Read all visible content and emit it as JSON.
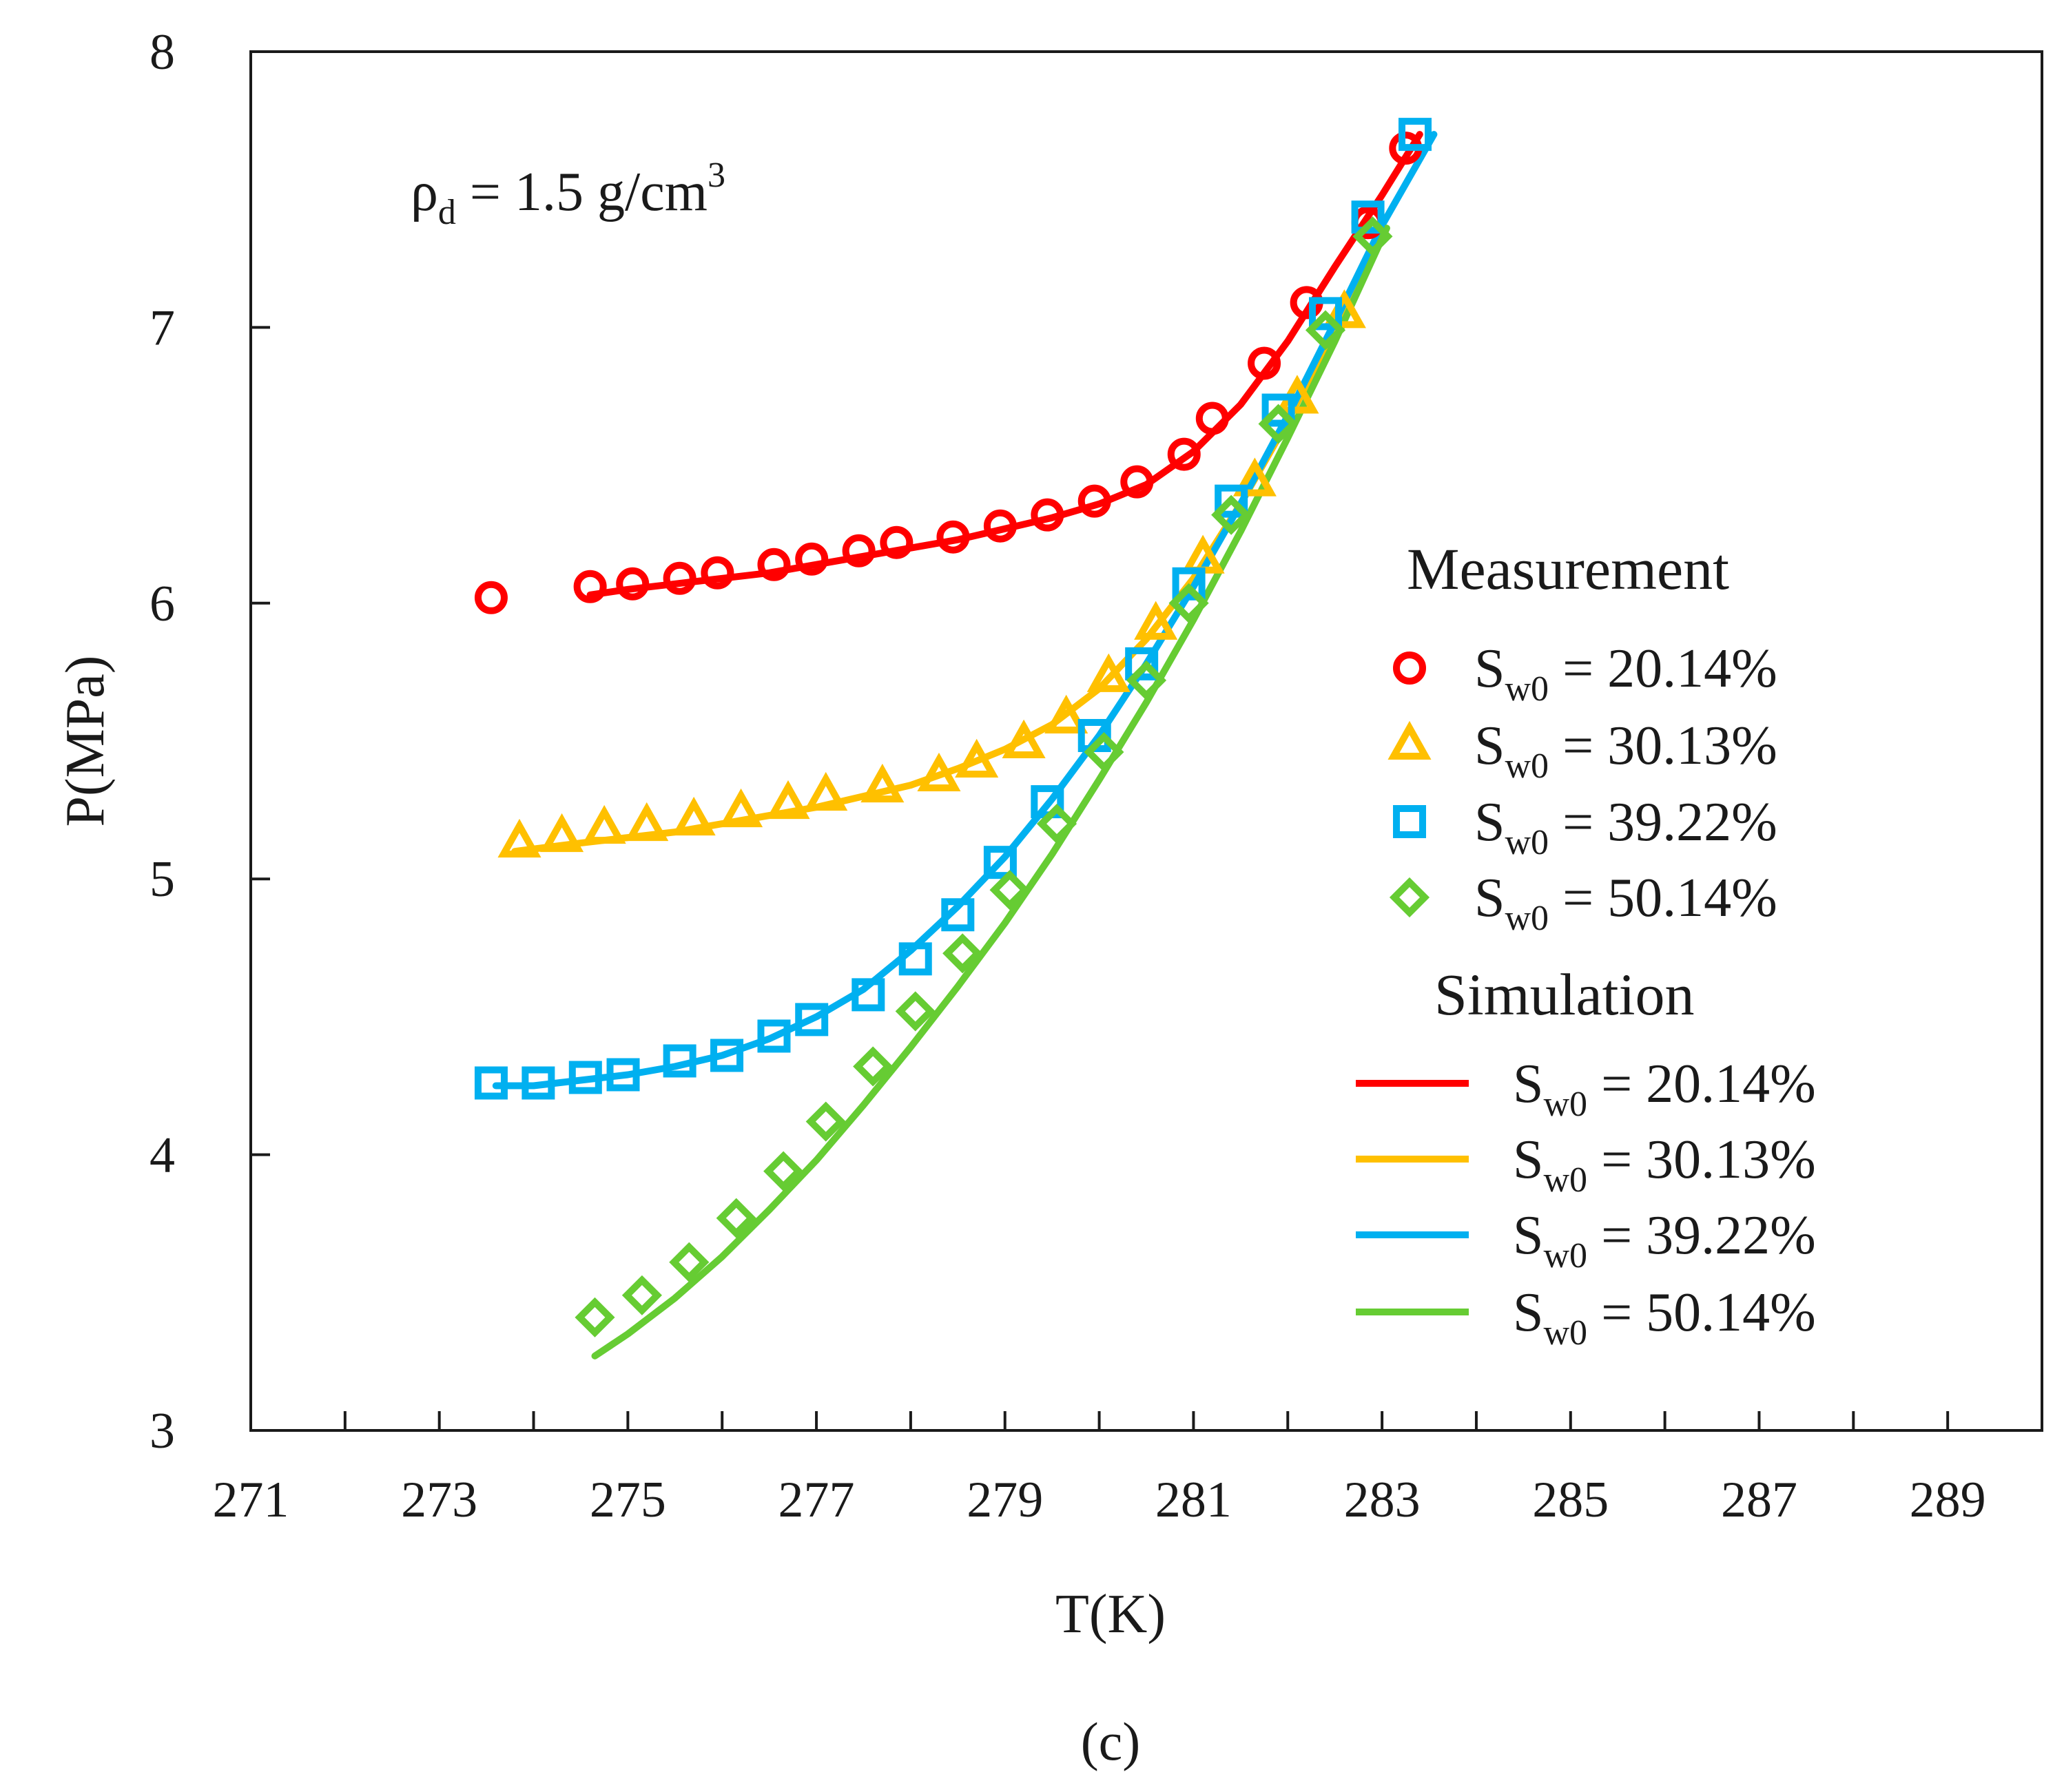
{
  "chart_data": {
    "type": "scatter",
    "xlabel": "T(K)",
    "ylabel": "P(MPa)",
    "xlim": [
      271,
      290
    ],
    "ylim": [
      3,
      8
    ],
    "x_ticks": [
      "271",
      "273",
      "275",
      "277",
      "279",
      "281",
      "283",
      "285",
      "287",
      "289"
    ],
    "y_ticks": [
      "3",
      "4",
      "5",
      "6",
      "7",
      "8"
    ],
    "grid": false,
    "legend_position": "right",
    "annotation": {
      "prefix": "ρ",
      "prefix_sub": "d",
      "body": " = 1.5 g/cm",
      "sup": "3"
    },
    "panel_label": "(c)",
    "legend": {
      "measurement_title": "Measurement",
      "simulation_title": "Simulation",
      "entries": [
        {
          "main": "S",
          "sub": "w0",
          "rest": " = 20.14%"
        },
        {
          "main": "S",
          "sub": "w0",
          "rest": " = 30.13%"
        },
        {
          "main": "S",
          "sub": "w0",
          "rest": " = 39.22%"
        },
        {
          "main": "S",
          "sub": "w0",
          "rest": " = 50.14%"
        }
      ]
    },
    "measurement": [
      {
        "color": "#ff0000",
        "marker": "circle",
        "points": [
          [
            273.55,
            6.02
          ],
          [
            274.6,
            6.06
          ],
          [
            275.05,
            6.07
          ],
          [
            275.55,
            6.09
          ],
          [
            275.95,
            6.11
          ],
          [
            276.55,
            6.14
          ],
          [
            276.95,
            6.16
          ],
          [
            277.45,
            6.19
          ],
          [
            277.85,
            6.22
          ],
          [
            278.45,
            6.24
          ],
          [
            278.95,
            6.28
          ],
          [
            279.45,
            6.32
          ],
          [
            279.95,
            6.37
          ],
          [
            280.4,
            6.44
          ],
          [
            280.9,
            6.54
          ],
          [
            281.2,
            6.67
          ],
          [
            281.75,
            6.87
          ],
          [
            282.2,
            7.09
          ],
          [
            282.85,
            7.38
          ],
          [
            283.25,
            7.65
          ]
        ]
      },
      {
        "color": "#ffc000",
        "marker": "triangle",
        "points": [
          [
            273.85,
            5.13
          ],
          [
            274.3,
            5.15
          ],
          [
            274.75,
            5.18
          ],
          [
            275.2,
            5.19
          ],
          [
            275.7,
            5.21
          ],
          [
            276.2,
            5.24
          ],
          [
            276.7,
            5.27
          ],
          [
            277.1,
            5.3
          ],
          [
            277.7,
            5.33
          ],
          [
            278.3,
            5.37
          ],
          [
            278.7,
            5.42
          ],
          [
            279.2,
            5.49
          ],
          [
            279.65,
            5.58
          ],
          [
            280.1,
            5.73
          ],
          [
            280.6,
            5.92
          ],
          [
            281.1,
            6.16
          ],
          [
            281.65,
            6.44
          ],
          [
            282.1,
            6.74
          ],
          [
            282.6,
            7.05
          ]
        ]
      },
      {
        "color": "#00b0f0",
        "marker": "square",
        "points": [
          [
            273.55,
            4.26
          ],
          [
            274.05,
            4.26
          ],
          [
            274.55,
            4.28
          ],
          [
            274.95,
            4.29
          ],
          [
            275.55,
            4.34
          ],
          [
            276.05,
            4.36
          ],
          [
            276.55,
            4.43
          ],
          [
            276.95,
            4.49
          ],
          [
            277.55,
            4.58
          ],
          [
            278.05,
            4.71
          ],
          [
            278.5,
            4.87
          ],
          [
            278.95,
            5.06
          ],
          [
            279.45,
            5.28
          ],
          [
            279.95,
            5.52
          ],
          [
            280.45,
            5.78
          ],
          [
            280.95,
            6.07
          ],
          [
            281.4,
            6.37
          ],
          [
            281.9,
            6.7
          ],
          [
            282.4,
            7.05
          ],
          [
            282.85,
            7.4
          ],
          [
            283.35,
            7.7
          ]
        ]
      },
      {
        "color": "#66cc33",
        "marker": "diamond",
        "points": [
          [
            274.65,
            3.41
          ],
          [
            275.15,
            3.49
          ],
          [
            275.65,
            3.61
          ],
          [
            276.15,
            3.77
          ],
          [
            276.65,
            3.94
          ],
          [
            277.1,
            4.12
          ],
          [
            277.6,
            4.32
          ],
          [
            278.05,
            4.52
          ],
          [
            278.55,
            4.73
          ],
          [
            279.05,
            4.96
          ],
          [
            279.55,
            5.2
          ],
          [
            280.05,
            5.46
          ],
          [
            280.5,
            5.72
          ],
          [
            280.95,
            6.0
          ],
          [
            281.4,
            6.32
          ],
          [
            281.9,
            6.65
          ],
          [
            282.4,
            6.99
          ],
          [
            282.9,
            7.33
          ]
        ]
      }
    ],
    "simulation": [
      {
        "color": "#ff0000",
        "points": [
          [
            274.6,
            6.03
          ],
          [
            275.0,
            6.05
          ],
          [
            275.5,
            6.07
          ],
          [
            276.0,
            6.09
          ],
          [
            276.5,
            6.11
          ],
          [
            277.0,
            6.14
          ],
          [
            277.5,
            6.17
          ],
          [
            278.0,
            6.2
          ],
          [
            278.5,
            6.23
          ],
          [
            279.0,
            6.27
          ],
          [
            279.5,
            6.31
          ],
          [
            280.0,
            6.36
          ],
          [
            280.5,
            6.43
          ],
          [
            281.0,
            6.55
          ],
          [
            281.5,
            6.72
          ],
          [
            282.0,
            6.95
          ],
          [
            282.5,
            7.22
          ],
          [
            283.0,
            7.48
          ],
          [
            283.4,
            7.7
          ]
        ]
      },
      {
        "color": "#ffc000",
        "points": [
          [
            273.8,
            5.1
          ],
          [
            274.5,
            5.13
          ],
          [
            275.0,
            5.15
          ],
          [
            275.5,
            5.17
          ],
          [
            276.0,
            5.2
          ],
          [
            276.5,
            5.23
          ],
          [
            277.0,
            5.26
          ],
          [
            277.5,
            5.3
          ],
          [
            278.0,
            5.34
          ],
          [
            278.5,
            5.4
          ],
          [
            279.0,
            5.47
          ],
          [
            279.5,
            5.56
          ],
          [
            280.0,
            5.69
          ],
          [
            280.5,
            5.87
          ],
          [
            281.0,
            6.09
          ],
          [
            281.5,
            6.36
          ],
          [
            282.0,
            6.66
          ],
          [
            282.5,
            7.0
          ],
          [
            283.0,
            7.36
          ]
        ]
      },
      {
        "color": "#00b0f0",
        "points": [
          [
            273.6,
            4.25
          ],
          [
            274.0,
            4.25
          ],
          [
            274.5,
            4.27
          ],
          [
            275.0,
            4.29
          ],
          [
            275.5,
            4.32
          ],
          [
            276.0,
            4.36
          ],
          [
            276.5,
            4.42
          ],
          [
            277.0,
            4.5
          ],
          [
            277.5,
            4.6
          ],
          [
            278.0,
            4.74
          ],
          [
            278.5,
            4.9
          ],
          [
            279.0,
            5.08
          ],
          [
            279.5,
            5.29
          ],
          [
            280.0,
            5.52
          ],
          [
            280.5,
            5.78
          ],
          [
            281.0,
            6.06
          ],
          [
            281.5,
            6.36
          ],
          [
            282.0,
            6.68
          ],
          [
            282.5,
            7.02
          ],
          [
            283.0,
            7.37
          ],
          [
            283.55,
            7.7
          ]
        ]
      },
      {
        "color": "#66cc33",
        "points": [
          [
            274.65,
            3.27
          ],
          [
            275.0,
            3.35
          ],
          [
            275.5,
            3.48
          ],
          [
            276.0,
            3.63
          ],
          [
            276.5,
            3.8
          ],
          [
            277.0,
            3.98
          ],
          [
            277.5,
            4.18
          ],
          [
            278.0,
            4.39
          ],
          [
            278.5,
            4.61
          ],
          [
            279.0,
            4.84
          ],
          [
            279.5,
            5.09
          ],
          [
            280.0,
            5.36
          ],
          [
            280.5,
            5.64
          ],
          [
            281.0,
            5.94
          ],
          [
            281.5,
            6.26
          ],
          [
            282.0,
            6.6
          ],
          [
            282.5,
            6.95
          ],
          [
            283.05,
            7.36
          ]
        ]
      }
    ]
  }
}
